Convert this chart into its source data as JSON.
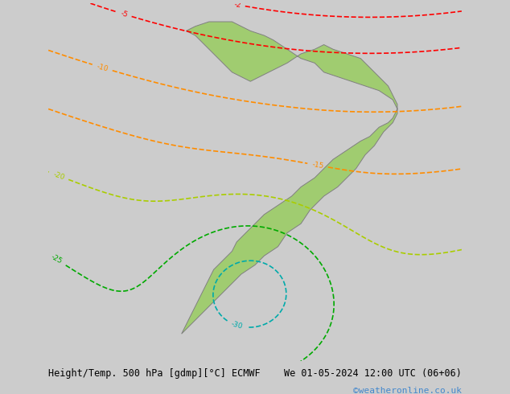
{
  "title_left": "Height/Temp. 500 hPa [gdmp][°C] ECMWF",
  "title_right": "We 01-05-2024 12:00 UTC (06+06)",
  "watermark": "©weatheronline.co.uk",
  "bg_color": "#d0d0d0",
  "land_color": "#b0b0b0",
  "sa_color": "#90c060",
  "water_color": "#d8d8d8",
  "font_size_title": 8.5,
  "font_size_watermark": 8
}
